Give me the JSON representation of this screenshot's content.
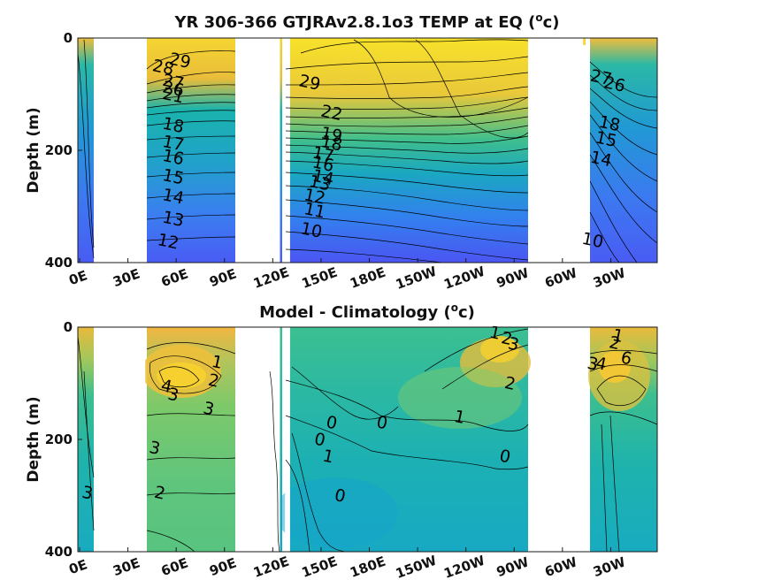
{
  "chart_data": [
    {
      "type": "heatmap",
      "title": "YR 306-366 GTJRAv2.8.1o3 TEMP at EQ (",
      "title_sup": "o",
      "title_tail": "c)",
      "ylabel": "Depth (m)",
      "ylim": [
        0,
        400
      ],
      "y_reversed": true,
      "y_ticks": [
        "0",
        "200",
        "400"
      ],
      "x_ticks": [
        "0E",
        "30E",
        "60E",
        "90E",
        "120E",
        "150E",
        "180E",
        "150W",
        "120W",
        "90W",
        "60W",
        "30W"
      ],
      "land_gaps_lon": [
        [
          10,
          40
        ],
        [
          98,
          120
        ],
        [
          123,
          126
        ],
        [
          280,
          300
        ]
      ],
      "colormap": "parula",
      "contour_labels": [
        {
          "text": "29",
          "lon": 60,
          "depth": 50
        },
        {
          "text": "28",
          "lon": 50,
          "depth": 62
        },
        {
          "text": "27",
          "lon": 56,
          "depth": 88
        },
        {
          "text": "26",
          "lon": 56,
          "depth": 100
        },
        {
          "text": "21",
          "lon": 56,
          "depth": 112
        },
        {
          "text": "18",
          "lon": 56,
          "depth": 165
        },
        {
          "text": "17",
          "lon": 56,
          "depth": 197
        },
        {
          "text": "16",
          "lon": 56,
          "depth": 222
        },
        {
          "text": "15",
          "lon": 56,
          "depth": 257
        },
        {
          "text": "14",
          "lon": 56,
          "depth": 292
        },
        {
          "text": "13",
          "lon": 56,
          "depth": 332
        },
        {
          "text": "12",
          "lon": 53,
          "depth": 372
        },
        {
          "text": "29",
          "lon": 137,
          "depth": 89
        },
        {
          "text": "22",
          "lon": 150,
          "depth": 143
        },
        {
          "text": "19",
          "lon": 150,
          "depth": 182
        },
        {
          "text": "18",
          "lon": 150,
          "depth": 197
        },
        {
          "text": "17",
          "lon": 145,
          "depth": 217
        },
        {
          "text": "16",
          "lon": 145,
          "depth": 234
        },
        {
          "text": "14",
          "lon": 145,
          "depth": 258
        },
        {
          "text": "13",
          "lon": 143,
          "depth": 268
        },
        {
          "text": "12",
          "lon": 140,
          "depth": 292
        },
        {
          "text": "11",
          "lon": 140,
          "depth": 317
        },
        {
          "text": "10",
          "lon": 138,
          "depth": 352
        },
        {
          "text": "27",
          "lon": 310,
          "depth": 80
        },
        {
          "text": "26",
          "lon": 318,
          "depth": 92
        },
        {
          "text": "18",
          "lon": 315,
          "depth": 162
        },
        {
          "text": "15",
          "lon": 313,
          "depth": 190
        },
        {
          "text": "14",
          "lon": 310,
          "depth": 225
        },
        {
          "text": "10",
          "lon": 305,
          "depth": 370
        }
      ]
    },
    {
      "type": "heatmap",
      "title": "Model - Climatology (",
      "title_sup": "o",
      "title_tail": "c)",
      "ylabel": "Depth (m)",
      "ylim": [
        0,
        400
      ],
      "y_reversed": true,
      "y_ticks": [
        "0",
        "200",
        "400"
      ],
      "x_ticks": [
        "0E",
        "30E",
        "60E",
        "90E",
        "120E",
        "150E",
        "180E",
        "150W",
        "120W",
        "90W",
        "60W",
        "30W"
      ],
      "land_gaps_lon": [
        [
          10,
          40
        ],
        [
          98,
          120
        ],
        [
          123,
          126
        ],
        [
          280,
          300
        ]
      ],
      "colormap": "parula",
      "contour_labels": [
        {
          "text": "1",
          "lon": 82,
          "depth": 72
        },
        {
          "text": "2",
          "lon": 80,
          "depth": 105
        },
        {
          "text": "4",
          "lon": 52,
          "depth": 115
        },
        {
          "text": "3",
          "lon": 56,
          "depth": 130
        },
        {
          "text": "3",
          "lon": 77,
          "depth": 155
        },
        {
          "text": "3",
          "lon": 45,
          "depth": 225
        },
        {
          "text": "2",
          "lon": 48,
          "depth": 305
        },
        {
          "text": "3",
          "lon": 5,
          "depth": 305
        },
        {
          "text": "1",
          "lon": 247,
          "depth": 20
        },
        {
          "text": "2",
          "lon": 254,
          "depth": 30
        },
        {
          "text": "3",
          "lon": 258,
          "depth": 40
        },
        {
          "text": "2",
          "lon": 256,
          "depth": 110
        },
        {
          "text": "1",
          "lon": 226,
          "depth": 170
        },
        {
          "text": "0",
          "lon": 180,
          "depth": 180
        },
        {
          "text": "0",
          "lon": 150,
          "depth": 180
        },
        {
          "text": "0",
          "lon": 143,
          "depth": 210
        },
        {
          "text": "1",
          "lon": 148,
          "depth": 240
        },
        {
          "text": "0",
          "lon": 253,
          "depth": 240
        },
        {
          "text": "0",
          "lon": 155,
          "depth": 310
        },
        {
          "text": "1",
          "lon": 320,
          "depth": 25
        },
        {
          "text": "2",
          "lon": 318,
          "depth": 38
        },
        {
          "text": "3",
          "lon": 305,
          "depth": 75
        },
        {
          "text": "4",
          "lon": 310,
          "depth": 75
        },
        {
          "text": "6",
          "lon": 325,
          "depth": 65
        }
      ]
    }
  ]
}
